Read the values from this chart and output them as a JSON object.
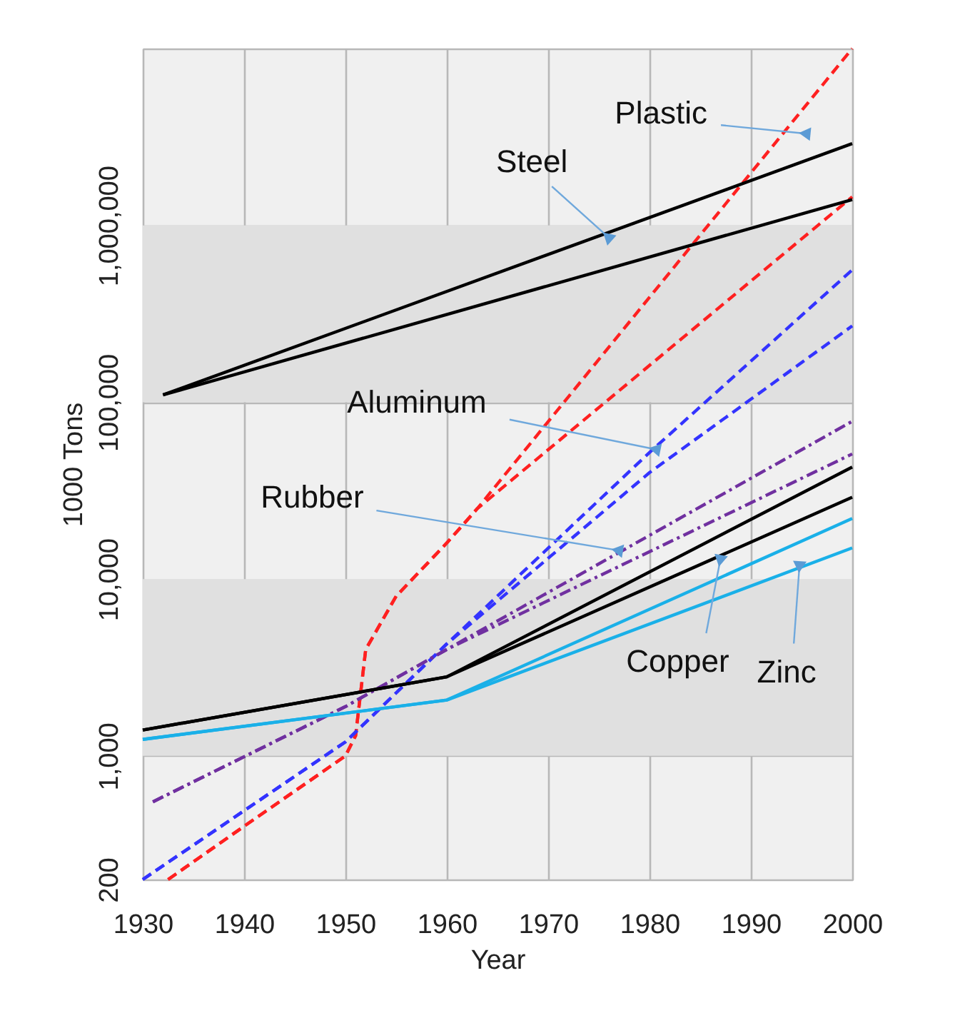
{
  "chart_data": {
    "type": "line",
    "xlabel": "Year",
    "ylabel": "1000 Tons",
    "xlim": [
      1930,
      2000
    ],
    "xticks": [
      1930,
      1940,
      1950,
      1960,
      1970,
      1980,
      1990,
      2000
    ],
    "ylim": [
      200,
      10000000
    ],
    "yticks": [
      200,
      {
        "value": 1000,
        "label": "1,000"
      },
      {
        "value": 10000,
        "label": "10,000"
      },
      {
        "value": 100000,
        "label": "100,000"
      },
      {
        "value": 1000000,
        "label": "1,000,000"
      },
      {
        "value": 10000000,
        "label": null
      }
    ],
    "log": "y",
    "grid": true,
    "bands": [
      {
        "axis": "y",
        "from": 1000,
        "to": 10000,
        "color": "#e0e0e0"
      },
      {
        "axis": "y",
        "from": 100000,
        "to": 1000000,
        "color": "#e0e0e0"
      }
    ],
    "series": [
      {
        "color": "#ff2020",
        "line_style": "dashed",
        "x": [
          1932.5,
          1940,
          1950,
          1951,
          1952,
          1955,
          1960,
          1963,
          2000
        ],
        "values": [
          200,
          400,
          1000,
          1300,
          4000,
          8000,
          16000,
          25000,
          10000000
        ]
      },
      {
        "color": "#ff2020",
        "line_style": "dashed",
        "x": [
          1932.5,
          1940,
          1950,
          1951,
          1952,
          1955,
          1960,
          1963,
          2000
        ],
        "values": [
          200,
          400,
          1000,
          1300,
          4000,
          8000,
          16000,
          25000,
          1450000
        ]
      },
      {
        "color": "#000000",
        "line_style": "solid",
        "x": [
          1932,
          2000
        ],
        "values": [
          110000,
          2900000
        ]
      },
      {
        "color": "#000000",
        "line_style": "solid",
        "x": [
          1932,
          2000
        ],
        "values": [
          110000,
          1400000
        ]
      },
      {
        "color": "#3333ff",
        "line_style": "dashed",
        "x": [
          1930,
          1950,
          1960,
          1980,
          2000
        ],
        "values": [
          200,
          1200,
          4300,
          52000,
          560000
        ]
      },
      {
        "color": "#3333ff",
        "line_style": "dashed",
        "x": [
          1930,
          1950,
          1960,
          1980,
          2000
        ],
        "values": [
          200,
          1200,
          4300,
          40000,
          270000
        ]
      },
      {
        "color": "#7030a0",
        "line_style": "dashdot",
        "x": [
          1931,
          1950,
          1960,
          2000
        ],
        "values": [
          550,
          1900,
          4000,
          78000
        ]
      },
      {
        "color": "#7030a0",
        "line_style": "dashdot",
        "x": [
          1931,
          1950,
          1960,
          2000
        ],
        "values": [
          550,
          1900,
          4000,
          51000
        ]
      },
      {
        "color": "#000000",
        "line_style": "solid",
        "x": [
          1930,
          1960,
          2000
        ],
        "values": [
          1400,
          2800,
          43000
        ]
      },
      {
        "color": "#000000",
        "line_style": "solid",
        "x": [
          1930,
          1960,
          2000
        ],
        "values": [
          1400,
          2800,
          29000
        ]
      },
      {
        "color": "#1ab0e8",
        "line_style": "solid",
        "x": [
          1930,
          1960,
          2000
        ],
        "values": [
          1240,
          2070,
          22000
        ]
      },
      {
        "color": "#1ab0e8",
        "line_style": "solid",
        "x": [
          1930,
          1960,
          2000
        ],
        "values": [
          1240,
          2070,
          15000
        ]
      }
    ],
    "annotations": [
      {
        "text": "Plastic",
        "x": 1995.5,
        "y": 3300000
      },
      {
        "text": "Steel",
        "x": 1976,
        "y": 850000
      },
      {
        "text": "Aluminum",
        "x": 1980.7,
        "y": 54000
      },
      {
        "text": "Rubber",
        "x": 1977,
        "y": 14500
      },
      {
        "text": "Copper",
        "x": 1987,
        "y": 13000
      },
      {
        "text": "Zinc",
        "x": 1994.8,
        "y": 12000
      }
    ]
  }
}
